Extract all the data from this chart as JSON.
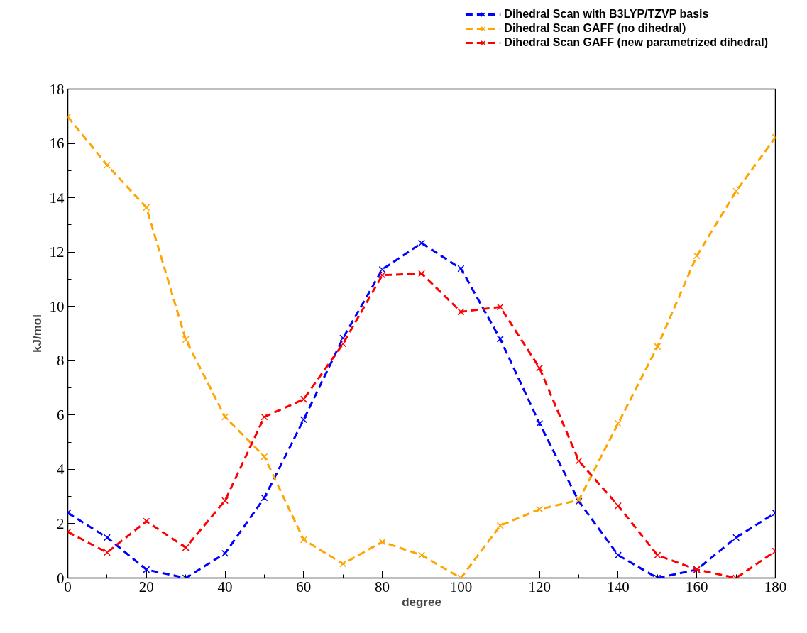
{
  "chart_data": {
    "type": "line",
    "xlabel": "degree",
    "ylabel": "kJ/mol",
    "x": [
      0,
      10,
      20,
      30,
      40,
      50,
      60,
      70,
      80,
      90,
      100,
      110,
      120,
      130,
      140,
      150,
      160,
      170,
      180
    ],
    "series": [
      {
        "name": "Dihedral Scan with B3LYP/TZVP basis",
        "color": "#0000ff",
        "values": [
          2.4,
          1.49,
          0.31,
          0,
          0.91,
          2.95,
          5.83,
          8.83,
          11.36,
          12.33,
          11.39,
          8.8,
          5.69,
          2.82,
          0.84,
          0,
          0.31,
          1.49,
          2.4
        ]
      },
      {
        "name": "Dihedral Scan GAFF (no dihedral)",
        "color": "#ffa500",
        "values": [
          16.98,
          15.2,
          13.64,
          8.78,
          5.93,
          4.47,
          1.41,
          0.52,
          1.33,
          0.84,
          0,
          1.93,
          2.53,
          2.87,
          5.69,
          8.52,
          11.86,
          14.24,
          16.22
        ]
      },
      {
        "name": "Dihedral Scan GAFF (new parametrized dihedral)",
        "color": "#ff0000",
        "values": [
          1.7,
          0.94,
          2.09,
          1.12,
          2.85,
          5.93,
          6.58,
          8.62,
          11.15,
          11.21,
          9.8,
          9.98,
          7.73,
          4.31,
          2.66,
          0.84,
          0.31,
          0,
          0.99
        ]
      }
    ],
    "xlim": [
      0,
      180
    ],
    "ylim": [
      0,
      18
    ],
    "xticks": [
      0,
      {
        "value": 10,
        "label": null
      },
      20,
      {
        "value": 30,
        "label": null
      },
      40,
      {
        "value": 50,
        "label": null
      },
      60,
      {
        "value": 70,
        "label": null
      },
      80,
      {
        "value": 90,
        "label": null
      },
      100,
      {
        "value": 110,
        "label": null
      },
      120,
      {
        "value": 130,
        "label": null
      },
      140,
      {
        "value": 150,
        "label": null
      },
      160,
      {
        "value": 170,
        "label": null
      },
      180
    ],
    "yticks": [
      0,
      {
        "value": 1,
        "label": null
      },
      2,
      {
        "value": 3,
        "label": null
      },
      4,
      {
        "value": 5,
        "label": null
      },
      6,
      {
        "value": 7,
        "label": null
      },
      8,
      {
        "value": 9,
        "label": null
      },
      10,
      {
        "value": 11,
        "label": null
      },
      12,
      {
        "value": 13,
        "label": null
      },
      14,
      {
        "value": 15,
        "label": null
      },
      16,
      {
        "value": 17,
        "label": null
      },
      18
    ],
    "grid": false,
    "legend": "top right",
    "marker": "cross",
    "line_style": "dashed"
  }
}
